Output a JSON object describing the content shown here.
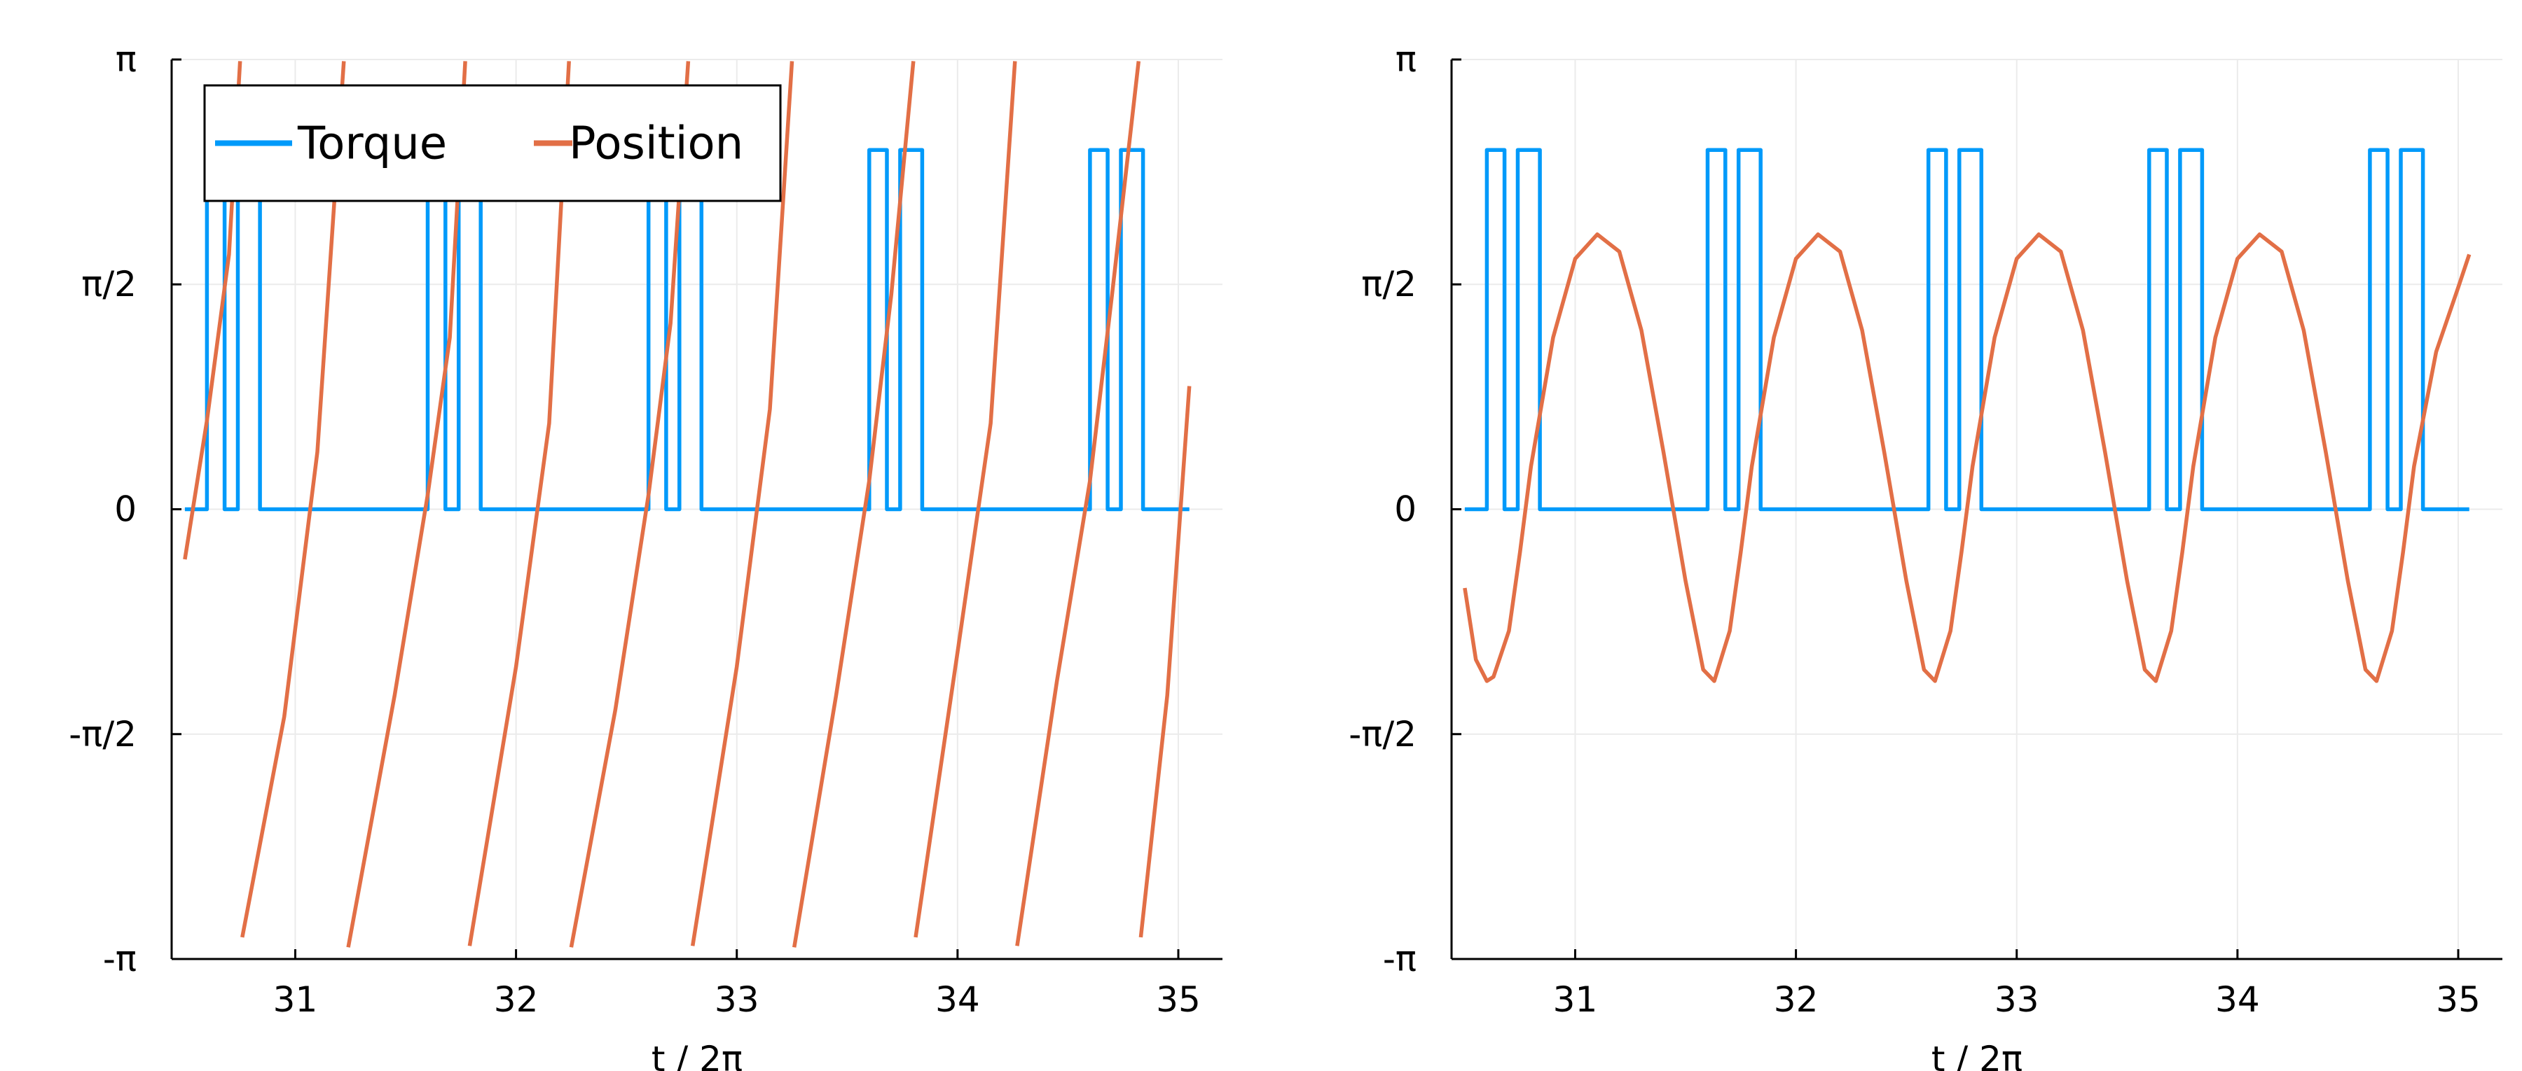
{
  "colors": {
    "torque": "#009AFA",
    "position": "#E26F46",
    "grid": "#ebebeb",
    "axis": "#000000",
    "background": "#ffffff"
  },
  "legend": {
    "placement": "top-left (left panel only)",
    "entries": [
      "Torque",
      "Position"
    ]
  },
  "chart_data": [
    {
      "type": "line",
      "panel": "left",
      "title": "",
      "xlabel": "t / 2π",
      "ylabel": "",
      "xlim": [
        30.44,
        35.2
      ],
      "ylim": [
        -3.14159,
        3.14159
      ],
      "xticks": [
        31,
        32,
        33,
        34,
        35
      ],
      "xtick_labels": [
        "31",
        "32",
        "33",
        "34",
        "35"
      ],
      "yticks": [
        -3.14159,
        -1.5708,
        0,
        1.5708,
        3.14159
      ],
      "ytick_labels": [
        "-π",
        "-π/2",
        "0",
        "π/2",
        "π"
      ],
      "grid": true,
      "legend": true,
      "series": [
        {
          "name": "Torque",
          "kind": "pulse-train",
          "t_start": 30.5,
          "t_end": 35.05,
          "period": 1.0,
          "level": 2.51,
          "pulses": [
            [
              0.1,
              0.18
            ],
            [
              0.24,
              0.34
            ]
          ],
          "first_pulse_at": 30.6
        },
        {
          "name": "Position",
          "kind": "rotating (wrapped to [-π, π])",
          "points": [
            [
              30.5,
              -0.35
            ],
            [
              30.6,
              0.62
            ],
            [
              30.7,
              1.78
            ],
            [
              30.75,
              3.13
            ],
            [
              30.76,
              -2.99
            ],
            [
              30.95,
              -1.45
            ],
            [
              31.1,
              0.4
            ],
            [
              31.22,
              3.13
            ],
            [
              31.24,
              -3.06
            ],
            [
              31.45,
              -1.3
            ],
            [
              31.6,
              0.1
            ],
            [
              31.7,
              1.2
            ],
            [
              31.77,
              3.13
            ],
            [
              31.79,
              -3.05
            ],
            [
              32.0,
              -1.1
            ],
            [
              32.15,
              0.6
            ],
            [
              32.24,
              3.13
            ],
            [
              32.25,
              -3.06
            ],
            [
              32.45,
              -1.4
            ],
            [
              32.6,
              0.1
            ],
            [
              32.7,
              1.3
            ],
            [
              32.78,
              3.13
            ],
            [
              32.8,
              -3.05
            ],
            [
              33.0,
              -1.1
            ],
            [
              33.15,
              0.7
            ],
            [
              33.25,
              3.13
            ],
            [
              33.26,
              -3.06
            ],
            [
              33.45,
              -1.3
            ],
            [
              33.6,
              0.2
            ],
            [
              33.7,
              1.5
            ],
            [
              33.8,
              3.13
            ],
            [
              33.81,
              -2.99
            ],
            [
              34.0,
              -1.0
            ],
            [
              34.15,
              0.6
            ],
            [
              34.26,
              3.13
            ],
            [
              34.27,
              -3.05
            ],
            [
              34.45,
              -1.2
            ],
            [
              34.6,
              0.2
            ],
            [
              34.7,
              1.5
            ],
            [
              34.82,
              3.13
            ],
            [
              34.83,
              -2.99
            ],
            [
              34.95,
              -1.3
            ],
            [
              35.05,
              0.86
            ]
          ]
        }
      ]
    },
    {
      "type": "line",
      "panel": "right",
      "title": "",
      "xlabel": "t / 2π",
      "ylabel": "",
      "xlim": [
        30.44,
        35.2
      ],
      "ylim": [
        -3.14159,
        3.14159
      ],
      "xticks": [
        31,
        32,
        33,
        34,
        35
      ],
      "xtick_labels": [
        "31",
        "32",
        "33",
        "34",
        "35"
      ],
      "yticks": [
        -3.14159,
        -1.5708,
        0,
        1.5708,
        3.14159
      ],
      "ytick_labels": [
        "-π",
        "-π/2",
        "0",
        "π/2",
        "π"
      ],
      "grid": true,
      "legend": false,
      "series": [
        {
          "name": "Torque",
          "kind": "pulse-train",
          "t_start": 30.5,
          "t_end": 35.05,
          "period": 1.0,
          "level": 2.51,
          "pulses": [
            [
              0.1,
              0.18
            ],
            [
              0.24,
              0.34
            ]
          ],
          "first_pulse_at": 30.6
        },
        {
          "name": "Position",
          "kind": "oscillating",
          "points": [
            [
              30.5,
              -0.55
            ],
            [
              30.55,
              -1.05
            ],
            [
              30.6,
              -1.2
            ],
            [
              30.63,
              -1.17
            ],
            [
              30.7,
              -0.85
            ],
            [
              30.75,
              -0.3
            ],
            [
              30.8,
              0.3
            ],
            [
              30.9,
              1.2
            ],
            [
              31.0,
              1.75
            ],
            [
              31.1,
              1.92
            ],
            [
              31.2,
              1.8
            ],
            [
              31.3,
              1.25
            ],
            [
              31.4,
              0.4
            ],
            [
              31.5,
              -0.5
            ],
            [
              31.58,
              -1.12
            ],
            [
              31.63,
              -1.2
            ],
            [
              31.7,
              -0.85
            ],
            [
              31.75,
              -0.3
            ],
            [
              31.8,
              0.3
            ],
            [
              31.9,
              1.2
            ],
            [
              32.0,
              1.75
            ],
            [
              32.1,
              1.92
            ],
            [
              32.2,
              1.8
            ],
            [
              32.3,
              1.25
            ],
            [
              32.4,
              0.4
            ],
            [
              32.5,
              -0.5
            ],
            [
              32.58,
              -1.12
            ],
            [
              32.63,
              -1.2
            ],
            [
              32.7,
              -0.85
            ],
            [
              32.75,
              -0.3
            ],
            [
              32.8,
              0.3
            ],
            [
              32.9,
              1.2
            ],
            [
              33.0,
              1.75
            ],
            [
              33.1,
              1.92
            ],
            [
              33.2,
              1.8
            ],
            [
              33.3,
              1.25
            ],
            [
              33.4,
              0.4
            ],
            [
              33.5,
              -0.5
            ],
            [
              33.58,
              -1.12
            ],
            [
              33.63,
              -1.2
            ],
            [
              33.7,
              -0.85
            ],
            [
              33.75,
              -0.3
            ],
            [
              33.8,
              0.3
            ],
            [
              33.9,
              1.2
            ],
            [
              34.0,
              1.75
            ],
            [
              34.1,
              1.92
            ],
            [
              34.2,
              1.8
            ],
            [
              34.3,
              1.25
            ],
            [
              34.4,
              0.4
            ],
            [
              34.5,
              -0.5
            ],
            [
              34.58,
              -1.12
            ],
            [
              34.63,
              -1.2
            ],
            [
              34.7,
              -0.85
            ],
            [
              34.75,
              -0.3
            ],
            [
              34.8,
              0.3
            ],
            [
              34.9,
              1.1
            ],
            [
              35.0,
              1.55
            ],
            [
              35.05,
              1.78
            ]
          ]
        }
      ]
    }
  ]
}
